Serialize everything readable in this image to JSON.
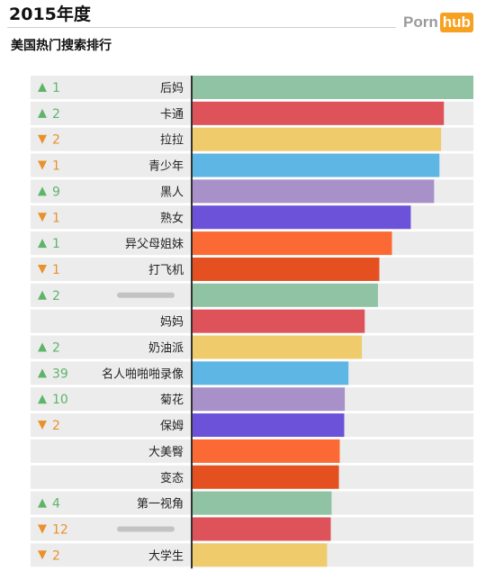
{
  "header": {
    "title": "2015年度",
    "subtitle": "美国热门搜索排行",
    "logo_part1": "Porn",
    "logo_part2": "hub"
  },
  "colors": {
    "up": "#5db46a",
    "down": "#e9912a",
    "row_bg": "#ececec",
    "bar_palette": [
      "#8fc3a4",
      "#dd5359",
      "#efcb6b",
      "#5db6e4",
      "#a891c8",
      "#6b52d8",
      "#fb6a35",
      "#e4501f"
    ]
  },
  "chart_data": {
    "type": "bar",
    "orientation": "horizontal",
    "xlim": [
      0,
      100
    ],
    "grid": false,
    "rows": [
      {
        "label": "后妈",
        "change": "up",
        "change_value": "1",
        "value": 100,
        "color": "#8fc3a4"
      },
      {
        "label": "卡通",
        "change": "up",
        "change_value": "2",
        "value": 89.5,
        "color": "#dd5359"
      },
      {
        "label": "拉拉",
        "change": "down",
        "change_value": "2",
        "value": 88.5,
        "color": "#efcb6b"
      },
      {
        "label": "青少年",
        "change": "down",
        "change_value": "1",
        "value": 87.9,
        "color": "#5db6e4"
      },
      {
        "label": "黑人",
        "change": "up",
        "change_value": "9",
        "value": 86.0,
        "color": "#a891c8"
      },
      {
        "label": "熟女",
        "change": "down",
        "change_value": "1",
        "value": 77.7,
        "color": "#6b52d8"
      },
      {
        "label": "异父母姐妹",
        "change": "up",
        "change_value": "1",
        "value": 71.0,
        "color": "#fb6a35"
      },
      {
        "label": "打飞机",
        "change": "down",
        "change_value": "1",
        "value": 66.5,
        "color": "#e4501f"
      },
      {
        "label": "",
        "change": "up",
        "change_value": "2",
        "value": 66.0,
        "color": "#8fc3a4",
        "blurred": true
      },
      {
        "label": "妈妈",
        "change": "none",
        "change_value": "",
        "value": 61.3,
        "color": "#dd5359"
      },
      {
        "label": "奶油派",
        "change": "up",
        "change_value": "2",
        "value": 60.3,
        "color": "#efcb6b"
      },
      {
        "label": "名人啪啪啪录像",
        "change": "up",
        "change_value": "39",
        "value": 55.5,
        "color": "#5db6e4"
      },
      {
        "label": "菊花",
        "change": "up",
        "change_value": "10",
        "value": 54.2,
        "color": "#a891c8"
      },
      {
        "label": "保姆",
        "change": "down",
        "change_value": "2",
        "value": 54.0,
        "color": "#6b52d8"
      },
      {
        "label": "大美臀",
        "change": "none",
        "change_value": "",
        "value": 52.4,
        "color": "#fb6a35"
      },
      {
        "label": "变态",
        "change": "none",
        "change_value": "",
        "value": 52.1,
        "color": "#e4501f"
      },
      {
        "label": "第一视角",
        "change": "up",
        "change_value": "4",
        "value": 49.5,
        "color": "#8fc3a4"
      },
      {
        "label": "",
        "change": "down",
        "change_value": "12",
        "value": 49.2,
        "color": "#dd5359",
        "blurred": true
      },
      {
        "label": "大学生",
        "change": "down",
        "change_value": "2",
        "value": 47.9,
        "color": "#efcb6b"
      }
    ]
  }
}
